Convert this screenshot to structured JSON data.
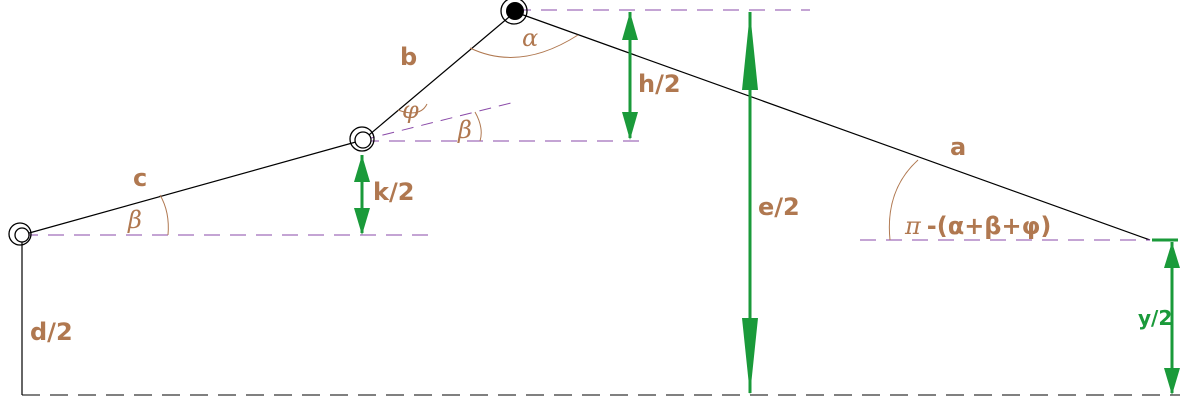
{
  "labels": {
    "a": "a",
    "b": "b",
    "c": "c",
    "d2": "d/2",
    "h2": "h/2",
    "k2": "k/2",
    "e2": "e/2",
    "y2": "y/2",
    "alpha": "α",
    "beta1": "β",
    "beta2": "β",
    "phi": "φ",
    "pi_expr_pi": "π",
    "pi_expr_rest": "-(α+β+φ)"
  },
  "colors": {
    "line": "#000000",
    "dashed_black": "#000000",
    "dashed_purple": "#8a4aa8",
    "arc": "#b07850",
    "label": "#b07850",
    "dimension": "#1a9a3a"
  }
}
